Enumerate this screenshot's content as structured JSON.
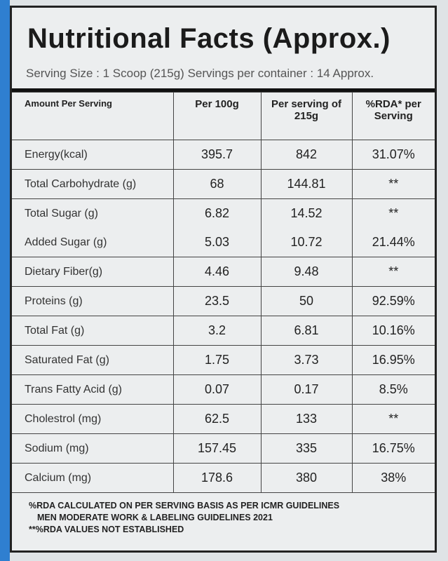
{
  "header": {
    "title": "Nutritional Facts (Approx.)",
    "serving": "Serving Size : 1 Scoop (215g) Servings per container : 14 Approx."
  },
  "table": {
    "columns": [
      "Amount Per Serving",
      "Per 100g",
      "Per serving of 215g",
      "%RDA* per Serving"
    ],
    "rows": [
      [
        "Energy(kcal)",
        "395.7",
        "842",
        "31.07%"
      ],
      [
        "Total Carbohydrate (g)",
        "68",
        "144.81",
        "**"
      ],
      [
        "Total Sugar (g)",
        "6.82",
        "14.52",
        "**"
      ],
      [
        "Added Sugar (g)",
        "5.03",
        "10.72",
        "21.44%"
      ],
      [
        "Dietary Fiber(g)",
        "4.46",
        "9.48",
        "**"
      ],
      [
        "Proteins (g)",
        "23.5",
        "50",
        "92.59%"
      ],
      [
        "Total Fat (g)",
        "3.2",
        "6.81",
        "10.16%"
      ],
      [
        "Saturated Fat (g)",
        "1.75",
        "3.73",
        "16.95%"
      ],
      [
        "Trans Fatty Acid (g)",
        "0.07",
        "0.17",
        "8.5%"
      ],
      [
        "Cholestrol (mg)",
        "62.5",
        "133",
        "**"
      ],
      [
        "Sodium (mg)",
        "157.45",
        "335",
        "16.75%"
      ],
      [
        "Calcium (mg)",
        "178.6",
        "380",
        "38%"
      ]
    ]
  },
  "footnotes": [
    "%RDA CALCULATED ON PER SERVING BASIS AS PER ICMR GUIDELINES",
    "MEN MODERATE WORK & LABELING GUIDELINES 2021",
    "**%RDA VALUES NOT ESTABLISHED"
  ]
}
